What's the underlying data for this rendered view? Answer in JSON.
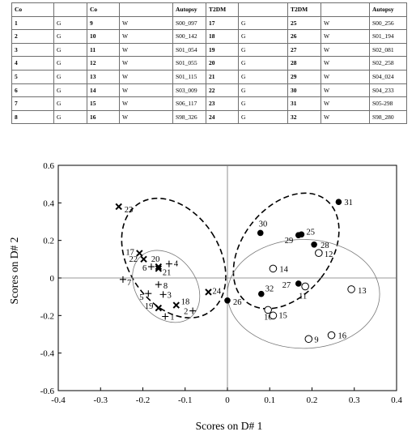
{
  "table": {
    "header": [
      "Co",
      "",
      "Co",
      "",
      "Autopsy",
      "T2DM",
      "",
      "T2DM",
      "",
      "Autopsy"
    ],
    "rows": [
      [
        "1",
        "G",
        "9",
        "W",
        "S00_097",
        "17",
        "G",
        "25",
        "W",
        "S00_256"
      ],
      [
        "2",
        "G",
        "10",
        "W",
        "S00_142",
        "18",
        "G",
        "26",
        "W",
        "S01_194"
      ],
      [
        "3",
        "G",
        "11",
        "W",
        "S01_054",
        "19",
        "G",
        "27",
        "W",
        "S02_081"
      ],
      [
        "4",
        "G",
        "12",
        "W",
        "S01_055",
        "20",
        "G",
        "28",
        "W",
        "S02_258"
      ],
      [
        "5",
        "G",
        "13",
        "W",
        "S01_115",
        "21",
        "G",
        "29",
        "W",
        "S04_024"
      ],
      [
        "6",
        "G",
        "14",
        "W",
        "S03_009",
        "22",
        "G",
        "30",
        "W",
        "S04_233"
      ],
      [
        "7",
        "G",
        "15",
        "W",
        "S06_117",
        "23",
        "G",
        "31",
        "W",
        "S05-298"
      ],
      [
        "8",
        "G",
        "16",
        "W",
        "S98_326",
        "24",
        "G",
        "32",
        "W",
        "S98_280"
      ]
    ]
  },
  "chart_data": {
    "type": "scatter",
    "xlabel": "Scores on D# 1",
    "ylabel": "Scores on D# 2",
    "xlim": [
      -0.4,
      0.4
    ],
    "ylim": [
      -0.6,
      0.6
    ],
    "xticks": [
      "-0.4",
      "-0.3",
      "-0.2",
      "-0.1",
      "0",
      "0.1",
      "0.2",
      "0.3",
      "0.4"
    ],
    "yticks": [
      "0.6",
      "0.4",
      "0.2",
      "0",
      "-0.2",
      "-0.4",
      "-0.6"
    ],
    "series": [
      {
        "marker": "plus",
        "points": [
          {
            "label": "1",
            "x": -0.147,
            "y": -0.205
          },
          {
            "label": "2",
            "x": -0.082,
            "y": -0.175
          },
          {
            "label": "3",
            "x": -0.152,
            "y": -0.088
          },
          {
            "label": "4",
            "x": -0.138,
            "y": 0.075
          },
          {
            "label": "5",
            "x": -0.187,
            "y": -0.083
          },
          {
            "label": "6",
            "x": -0.18,
            "y": 0.06
          },
          {
            "label": "7",
            "x": -0.247,
            "y": -0.008
          },
          {
            "label": "8",
            "x": -0.163,
            "y": -0.035
          }
        ]
      },
      {
        "marker": "cross",
        "points": [
          {
            "label": "17",
            "x": -0.208,
            "y": 0.132
          },
          {
            "label": "18",
            "x": -0.121,
            "y": -0.145
          },
          {
            "label": "19",
            "x": -0.163,
            "y": -0.16
          },
          {
            "label": "20",
            "x": -0.163,
            "y": 0.06
          },
          {
            "label": "21",
            "x": -0.163,
            "y": 0.05
          },
          {
            "label": "22",
            "x": -0.198,
            "y": 0.1
          },
          {
            "label": "23",
            "x": -0.257,
            "y": 0.38
          },
          {
            "label": "24",
            "x": -0.045,
            "y": -0.075
          }
        ]
      },
      {
        "marker": "open-circle",
        "points": [
          {
            "label": "9",
            "x": 0.192,
            "y": -0.325
          },
          {
            "label": "10",
            "x": 0.096,
            "y": -0.17
          },
          {
            "label": "11",
            "x": 0.184,
            "y": -0.045
          },
          {
            "label": "12",
            "x": 0.216,
            "y": 0.133
          },
          {
            "label": "13",
            "x": 0.293,
            "y": -0.06
          },
          {
            "label": "14",
            "x": 0.108,
            "y": 0.05
          },
          {
            "label": "15",
            "x": 0.108,
            "y": -0.2
          },
          {
            "label": "16",
            "x": 0.246,
            "y": -0.305
          }
        ]
      },
      {
        "marker": "filled-circle",
        "points": [
          {
            "label": "25",
            "x": 0.175,
            "y": 0.232
          },
          {
            "label": "26",
            "x": 0.0,
            "y": -0.12
          },
          {
            "label": "27",
            "x": 0.168,
            "y": -0.03
          },
          {
            "label": "28",
            "x": 0.205,
            "y": 0.178
          },
          {
            "label": "29",
            "x": 0.168,
            "y": 0.228
          },
          {
            "label": "30",
            "x": 0.078,
            "y": 0.24
          },
          {
            "label": "31",
            "x": 0.263,
            "y": 0.405
          },
          {
            "label": "32",
            "x": 0.08,
            "y": -0.085
          }
        ]
      }
    ],
    "ellipses": [
      {
        "style": "dashed",
        "cx": -0.127,
        "cy": 0.106,
        "rx": 0.108,
        "ry": 0.345,
        "angle_deg": -33
      },
      {
        "style": "dashed",
        "cx": 0.139,
        "cy": 0.144,
        "rx": 0.104,
        "ry": 0.345,
        "angle_deg": 38
      },
      {
        "style": "solid",
        "cx": -0.145,
        "cy": -0.045,
        "rx": 0.07,
        "ry": 0.21,
        "angle_deg": -38
      },
      {
        "style": "solid",
        "cx": 0.18,
        "cy": -0.085,
        "rx": 0.18,
        "ry": 0.29,
        "angle_deg": 0
      }
    ],
    "reference_lines": {
      "x": 0,
      "y": 0
    }
  }
}
